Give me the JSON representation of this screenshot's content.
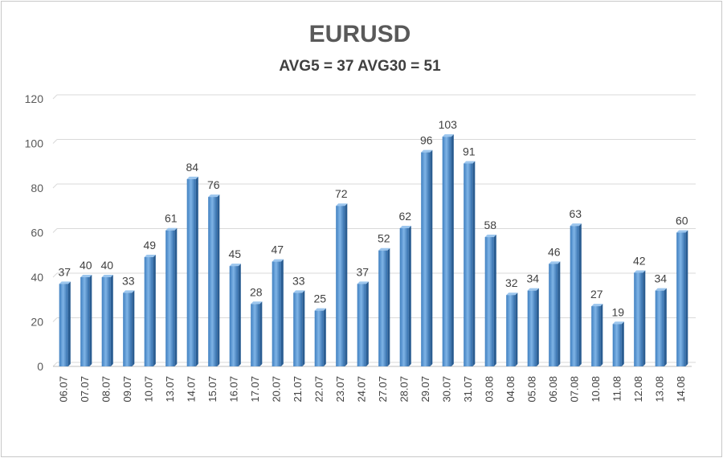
{
  "chart_data": {
    "type": "bar",
    "title": "EURUSD",
    "subtitle": "AVG5 = 37 AVG30 = 51",
    "xlabel": "",
    "ylabel": "",
    "ylim": [
      0,
      120
    ],
    "yticks": [
      0,
      20,
      40,
      60,
      80,
      100,
      120
    ],
    "grid": true,
    "legend": "none",
    "bar_color": "#5b9bd5",
    "categories": [
      "06.07",
      "07.07",
      "08.07",
      "09.07",
      "10.07",
      "13.07",
      "14.07",
      "15.07",
      "16.07",
      "17.07",
      "20.07",
      "21.07",
      "22.07",
      "23.07",
      "24.07",
      "27.07",
      "28.07",
      "29.07",
      "30.07",
      "31.07",
      "03.08",
      "04.08",
      "05.08",
      "06.08",
      "07.08",
      "10.08",
      "11.08",
      "12.08",
      "13.08",
      "14.08"
    ],
    "values": [
      37,
      40,
      40,
      33,
      49,
      61,
      84,
      76,
      45,
      28,
      47,
      33,
      25,
      72,
      37,
      52,
      62,
      96,
      103,
      91,
      58,
      32,
      34,
      46,
      63,
      27,
      19,
      42,
      34,
      60
    ]
  }
}
